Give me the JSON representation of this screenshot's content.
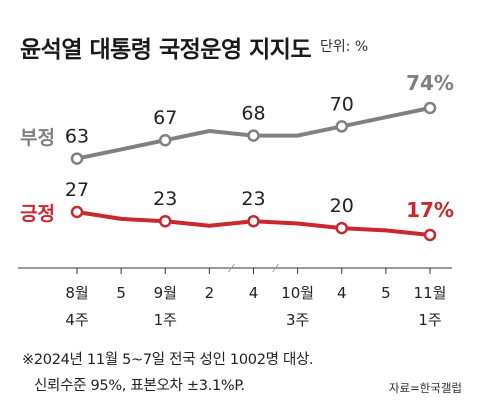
{
  "title": "윤석열 대통령 국정운영 지지도",
  "unit": "단위: %",
  "notes": {
    "line1": "※2024년 11월 5~7일 전국 성인 1002명 대상.",
    "line2": "신뢰수준 95%, 표본오차 ±3.1%P."
  },
  "source": "자료=한국갤럽",
  "colors": {
    "negative": "#808080",
    "positive": "#c8282e",
    "axis": "#333333"
  },
  "chart_data": {
    "type": "line",
    "categories": [
      "8월 4주",
      "5",
      "9월 1주",
      "2",
      "4",
      "10월 3주",
      "4",
      "5",
      "11월 1주"
    ],
    "x_labels": [
      {
        "line1": "8월",
        "line2": "4주"
      },
      {
        "line1": "5",
        "line2": ""
      },
      {
        "line1": "9월",
        "line2": "1주"
      },
      {
        "line1": "2",
        "line2": ""
      },
      {
        "line1": "4",
        "line2": ""
      },
      {
        "line1": "10월",
        "line2": "3주"
      },
      {
        "line1": "4",
        "line2": ""
      },
      {
        "line1": "5",
        "line2": ""
      },
      {
        "line1": "11월",
        "line2": "1주"
      }
    ],
    "series": [
      {
        "name": "부정",
        "values": [
          63,
          65,
          67,
          69,
          68,
          68,
          70,
          72,
          74
        ],
        "labels": [
          "63",
          "",
          "67",
          "",
          "68",
          "",
          "70",
          "",
          "74%"
        ],
        "markers": [
          true,
          false,
          true,
          false,
          true,
          false,
          true,
          false,
          true
        ]
      },
      {
        "name": "긍정",
        "values": [
          27,
          24,
          23,
          21,
          23,
          22,
          20,
          19,
          17
        ],
        "labels": [
          "27",
          "",
          "23",
          "",
          "23",
          "",
          "20",
          "",
          "17%"
        ],
        "markers": [
          true,
          false,
          true,
          false,
          true,
          false,
          true,
          false,
          true
        ]
      }
    ],
    "axis_breaks": [
      "3-4",
      "4-5"
    ]
  }
}
